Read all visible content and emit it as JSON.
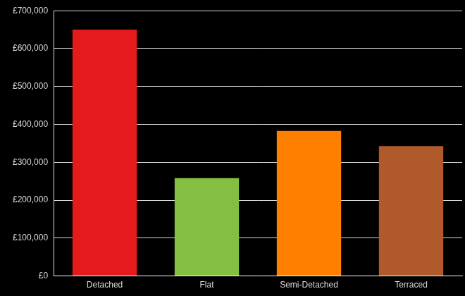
{
  "chart_data": {
    "type": "bar",
    "categories": [
      "Detached",
      "Flat",
      "Semi-Detached",
      "Terraced"
    ],
    "values": [
      650000,
      258000,
      383000,
      343000
    ],
    "colors": [
      "#e41a1c",
      "#84bf41",
      "#ff8000",
      "#b0592a"
    ],
    "ylim": [
      0,
      700000
    ],
    "yticks": [
      {
        "value": 0,
        "label": "£0"
      },
      {
        "value": 100000,
        "label": "£100,000"
      },
      {
        "value": 200000,
        "label": "£200,000"
      },
      {
        "value": 300000,
        "label": "£300,000"
      },
      {
        "value": 400000,
        "label": "£400,000"
      },
      {
        "value": 500000,
        "label": "£500,000"
      },
      {
        "value": 600000,
        "label": "£600,000"
      },
      {
        "value": 700000,
        "label": "£700,000"
      }
    ],
    "grid": true
  }
}
